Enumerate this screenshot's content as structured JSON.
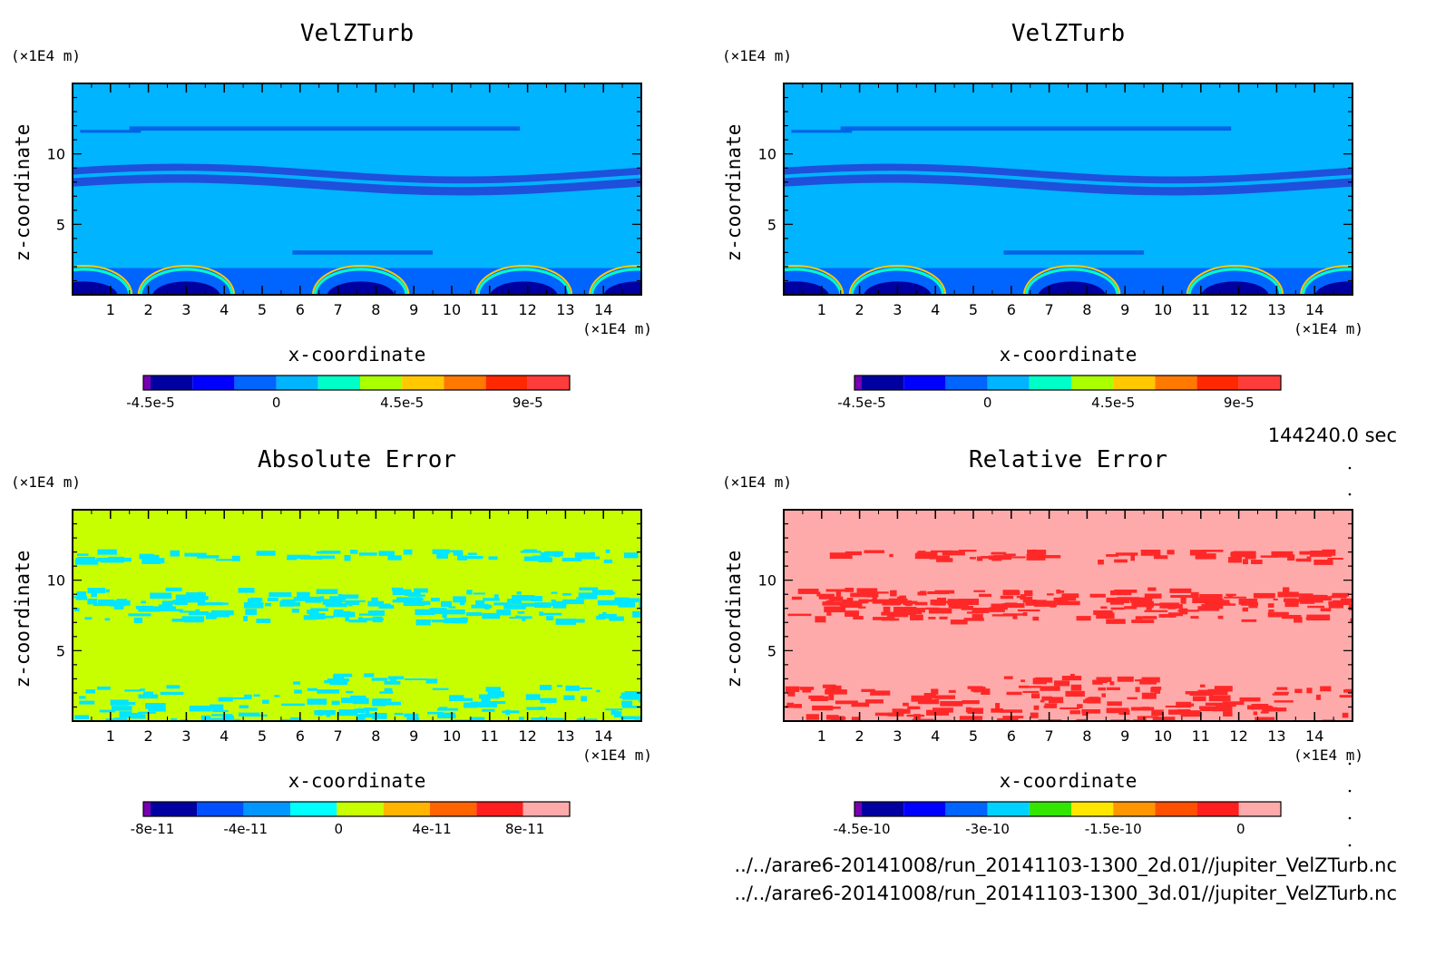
{
  "time_label": "144240.0 sec",
  "footer": {
    "file_2d": "../../arare6-20141008/run_20141103-1300_2d.01//jupiter_VelZTurb.nc",
    "file_3d": "../../arare6-20141008/run_20141103-1300_3d.01//jupiter_VelZTurb.nc"
  },
  "chart_data": [
    {
      "type": "heatmap",
      "title": "VelZTurb",
      "xlabel": "x-coordinate",
      "ylabel": "z-coordinate",
      "x_unit": "(×1E4 m)",
      "y_unit": "(×1E4 m)",
      "xlim": [
        0,
        15
      ],
      "ylim": [
        0,
        15
      ],
      "x_ticks": [
        "1",
        "2",
        "3",
        "4",
        "5",
        "6",
        "7",
        "8",
        "9",
        "10",
        "11",
        "12",
        "13",
        "14"
      ],
      "y_ticks": [
        "5",
        "10"
      ],
      "background_color": "#00b4ff",
      "features": [
        {
          "kind": "band",
          "z": 11.8,
          "height": 0.3,
          "x_start": 1.5,
          "x_end": 11.8,
          "color": "#0064e6"
        },
        {
          "kind": "band",
          "z": 11.6,
          "height": 0.2,
          "x_start": 0.2,
          "x_end": 1.8,
          "color": "#0064e6"
        },
        {
          "kind": "wave",
          "z": 8.6,
          "height": 0.5,
          "color": "#1e50dc"
        },
        {
          "kind": "wave",
          "z": 7.8,
          "height": 0.6,
          "color": "#1e50dc"
        },
        {
          "kind": "band",
          "z": 3.0,
          "height": 0.3,
          "x_start": 5.8,
          "x_end": 9.5,
          "color": "#0064e6"
        },
        {
          "kind": "arcs",
          "z": 1.8,
          "centers": [
            0.3,
            3.0,
            7.6,
            11.9,
            14.9
          ],
          "color": "#00ffc8"
        }
      ],
      "colorbar": {
        "colors": [
          "#7800b4",
          "#0000a0",
          "#0000ff",
          "#0064ff",
          "#00b4ff",
          "#00ffc8",
          "#aaff00",
          "#ffc800",
          "#ff7800",
          "#ff2800",
          "#ff3c3c"
        ],
        "labels": [
          "-4.5e-5",
          "0",
          "4.5e-5",
          "9e-5"
        ],
        "label_positions": [
          0.036,
          0.5,
          0.964,
          1.43
        ]
      }
    },
    {
      "type": "heatmap",
      "title": "VelZTurb",
      "xlabel": "x-coordinate",
      "ylabel": "z-coordinate",
      "x_unit": "(×1E4 m)",
      "y_unit": "(×1E4 m)",
      "xlim": [
        0,
        15
      ],
      "ylim": [
        0,
        15
      ],
      "x_ticks": [
        "1",
        "2",
        "3",
        "4",
        "5",
        "6",
        "7",
        "8",
        "9",
        "10",
        "11",
        "12",
        "13",
        "14"
      ],
      "y_ticks": [
        "5",
        "10"
      ],
      "background_color": "#00b4ff",
      "features": [
        {
          "kind": "band",
          "z": 11.8,
          "height": 0.3,
          "x_start": 1.5,
          "x_end": 11.8,
          "color": "#0064e6"
        },
        {
          "kind": "band",
          "z": 11.6,
          "height": 0.2,
          "x_start": 0.2,
          "x_end": 1.8,
          "color": "#0064e6"
        },
        {
          "kind": "wave",
          "z": 8.6,
          "height": 0.5,
          "color": "#1e50dc"
        },
        {
          "kind": "wave",
          "z": 7.8,
          "height": 0.6,
          "color": "#1e50dc"
        },
        {
          "kind": "band",
          "z": 3.0,
          "height": 0.3,
          "x_start": 5.8,
          "x_end": 9.5,
          "color": "#0064e6"
        },
        {
          "kind": "arcs",
          "z": 1.8,
          "centers": [
            0.3,
            3.0,
            7.6,
            11.9,
            14.9
          ],
          "color": "#00ffc8"
        }
      ],
      "colorbar": {
        "colors": [
          "#7800b4",
          "#0000a0",
          "#0000ff",
          "#0064ff",
          "#00b4ff",
          "#00ffc8",
          "#aaff00",
          "#ffc800",
          "#ff7800",
          "#ff2800",
          "#ff3c3c"
        ],
        "labels": [
          "-4.5e-5",
          "0",
          "4.5e-5",
          "9e-5"
        ],
        "label_positions": [
          0.036,
          0.5,
          0.964,
          1.43
        ]
      }
    },
    {
      "type": "heatmap",
      "title": "Absolute Error",
      "xlabel": "x-coordinate",
      "ylabel": "z-coordinate",
      "x_unit": "(×1E4 m)",
      "y_unit": "(×1E4 m)",
      "xlim": [
        0,
        15
      ],
      "ylim": [
        0,
        15
      ],
      "x_ticks": [
        "1",
        "2",
        "3",
        "4",
        "5",
        "6",
        "7",
        "8",
        "9",
        "10",
        "11",
        "12",
        "13",
        "14"
      ],
      "y_ticks": [
        "5",
        "10"
      ],
      "background_color": "#c8ff00",
      "features": [
        {
          "kind": "speckle",
          "z": 11.8,
          "height": 0.4,
          "density": 0.55,
          "color": "#00e6ff"
        },
        {
          "kind": "speckle",
          "z": 8.9,
          "height": 0.6,
          "density": 0.6,
          "color": "#00e6ff"
        },
        {
          "kind": "speckle",
          "z": 8.0,
          "height": 0.8,
          "density": 0.55,
          "color": "#00e6ff"
        },
        {
          "kind": "speckle",
          "z": 3.1,
          "height": 0.3,
          "density": 0.5,
          "color": "#00e6ff",
          "x_start": 5.8,
          "x_end": 9.5
        },
        {
          "kind": "speckle",
          "z": 1.2,
          "height": 1.4,
          "density": 0.5,
          "color": "#00e6ff"
        }
      ],
      "colorbar": {
        "colors": [
          "#7800b4",
          "#0000a0",
          "#0050ff",
          "#0096ff",
          "#00ffff",
          "#c8ff00",
          "#ffb400",
          "#ff6400",
          "#ff1e1e",
          "#ffaaaa"
        ],
        "labels": [
          "-8e-11",
          "-4e-11",
          "0",
          "4e-11",
          "8e-11"
        ],
        "label_positions": [
          -8,
          -4,
          0,
          4,
          8
        ]
      }
    },
    {
      "type": "heatmap",
      "title": "Relative Error",
      "xlabel": "x-coordinate",
      "ylabel": "z-coordinate",
      "x_unit": "(×1E4 m)",
      "y_unit": "(×1E4 m)",
      "xlim": [
        0,
        15
      ],
      "ylim": [
        0,
        15
      ],
      "x_ticks": [
        "1",
        "2",
        "3",
        "4",
        "5",
        "6",
        "7",
        "8",
        "9",
        "10",
        "11",
        "12",
        "13",
        "14"
      ],
      "y_ticks": [
        "5",
        "10"
      ],
      "background_color": "#ffaaaa",
      "features": [
        {
          "kind": "speckle",
          "z": 11.8,
          "height": 0.4,
          "density": 0.55,
          "color": "#ff2828"
        },
        {
          "kind": "speckle",
          "z": 8.9,
          "height": 0.6,
          "density": 0.6,
          "color": "#ff2828"
        },
        {
          "kind": "speckle",
          "z": 8.0,
          "height": 0.8,
          "density": 0.55,
          "color": "#ff2828"
        },
        {
          "kind": "speckle",
          "z": 3.1,
          "height": 0.3,
          "density": 0.5,
          "color": "#ff2828",
          "x_start": 5.8,
          "x_end": 9.5
        },
        {
          "kind": "speckle",
          "z": 1.2,
          "height": 1.4,
          "density": 0.5,
          "color": "#ff2828"
        }
      ],
      "colorbar": {
        "colors": [
          "#7800b4",
          "#0000a0",
          "#0000ff",
          "#0064ff",
          "#00d2ff",
          "#32e600",
          "#ffe600",
          "#ff9600",
          "#ff5000",
          "#ff1e1e",
          "#ffaaaa"
        ],
        "labels": [
          "-4.5e-10",
          "-3e-10",
          "-1.5e-10",
          "0"
        ],
        "label_positions": [
          -4.5,
          -3,
          -1.5,
          0
        ]
      }
    }
  ]
}
